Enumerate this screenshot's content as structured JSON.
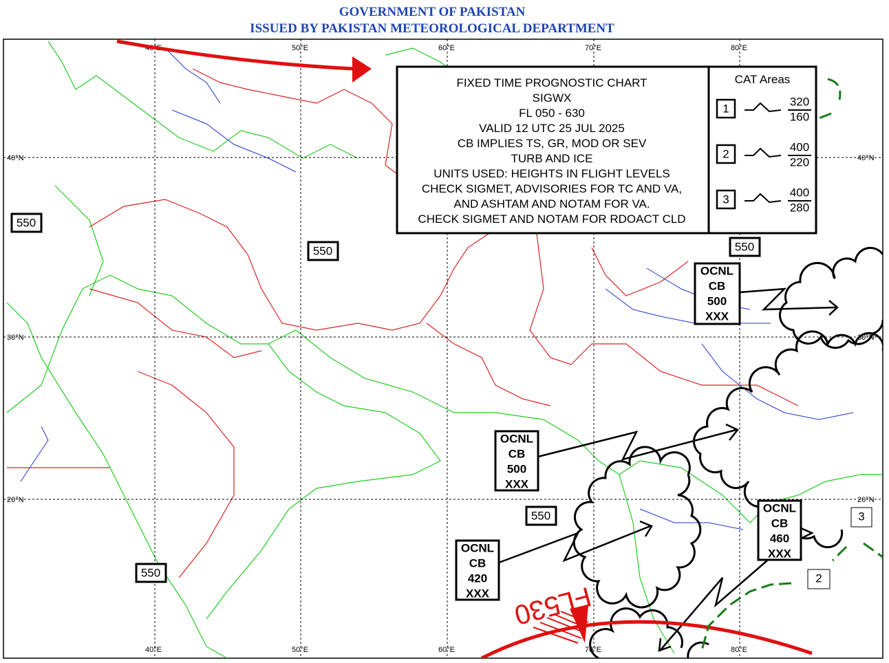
{
  "header": {
    "line1": "GOVERNMENT OF PAKISTAN",
    "line2": "ISSUED BY PAKISTAN METEOROLOGICAL DEPARTMENT"
  },
  "grid": {
    "longitudes": [
      "40°E",
      "50°E",
      "60°E",
      "70°E",
      "80°E"
    ],
    "latitudes": [
      "40°N",
      "30°N",
      "20°N"
    ]
  },
  "info_box": {
    "lines": [
      "FIXED TIME PROGNOSTIC CHART",
      "SIGWX",
      "FL 050 - 630",
      "VALID 12 UTC 25 JUL 2025",
      "CB IMPLIES TS, GR, MOD OR SEV",
      "TURB AND ICE",
      "UNITS USED: HEIGHTS IN FLIGHT LEVELS",
      "CHECK SIGMET, ADVISORIES FOR TC AND VA,",
      "AND ASHTAM AND NOTAM FOR VA.",
      "CHECK SIGMET AND NOTAM FOR RDOACT CLD"
    ]
  },
  "cat_areas": {
    "title": "CAT Areas",
    "items": [
      {
        "id": "1",
        "top": "320",
        "base": "160"
      },
      {
        "id": "2",
        "top": "400",
        "base": "220"
      },
      {
        "id": "3",
        "top": "400",
        "base": "280"
      }
    ]
  },
  "height_labels": [
    "550",
    "550",
    "550",
    "550",
    "550"
  ],
  "cb_areas": [
    {
      "coverage": "OCNL",
      "type": "CB",
      "top": "500",
      "base": "XXX"
    },
    {
      "coverage": "OCNL",
      "type": "CB",
      "top": "500",
      "base": "XXX"
    },
    {
      "coverage": "OCNL",
      "type": "CB",
      "top": "420",
      "base": "XXX"
    },
    {
      "coverage": "OCNL",
      "type": "CB",
      "top": "460",
      "base": "XXX"
    }
  ],
  "jet": {
    "level": "FL530"
  },
  "cat_markers": [
    "3",
    "2"
  ]
}
